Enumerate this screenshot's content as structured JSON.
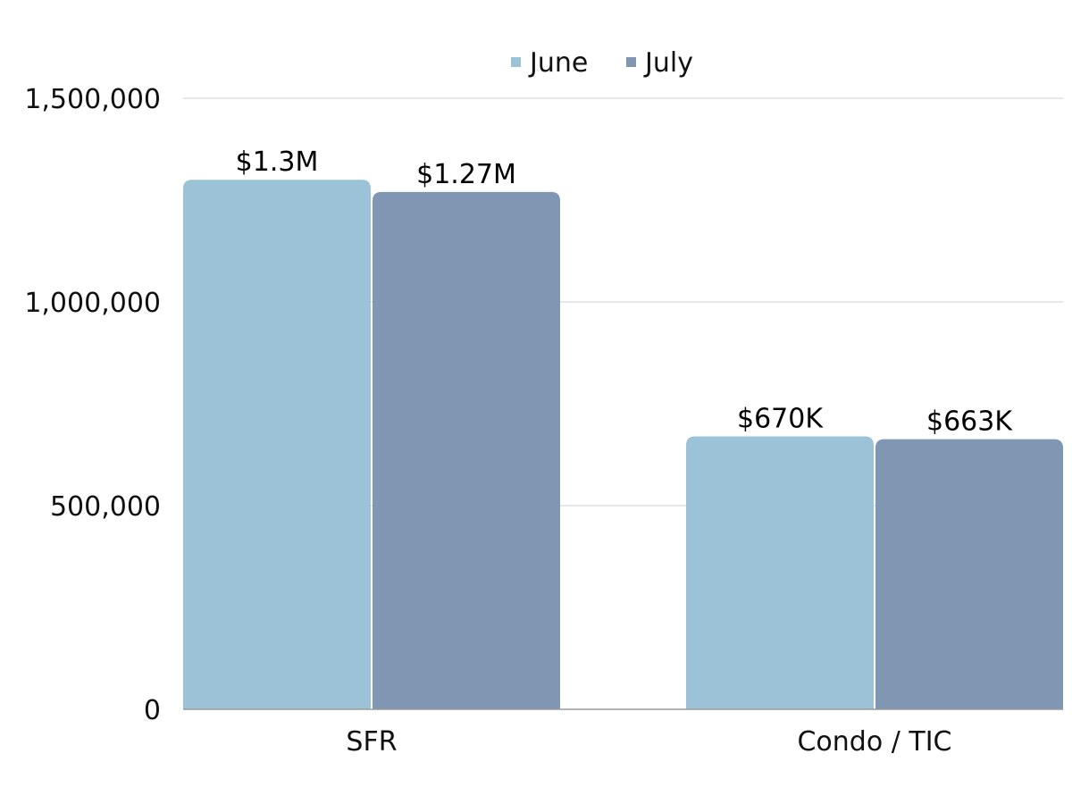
{
  "chart_data": {
    "type": "bar",
    "title": "",
    "xlabel": "",
    "ylabel": "",
    "categories": [
      "SFR",
      "Condo / TIC"
    ],
    "series": [
      {
        "name": "June",
        "color": "#9bc2d7",
        "values": [
          1300000,
          670000
        ],
        "labels": [
          "$1.3M",
          "$670K"
        ]
      },
      {
        "name": "July",
        "color": "#7f97b3",
        "values": [
          1270000,
          663000
        ],
        "labels": [
          "$1.27M",
          "$663K"
        ]
      }
    ],
    "ylim": [
      0,
      1500000
    ],
    "yticks": [
      0,
      500000,
      1000000,
      1500000
    ],
    "ytick_labels": [
      "0",
      "500,000",
      "1,000,000",
      "1,500,000"
    ],
    "grid": true,
    "legend_position": "top-center"
  }
}
